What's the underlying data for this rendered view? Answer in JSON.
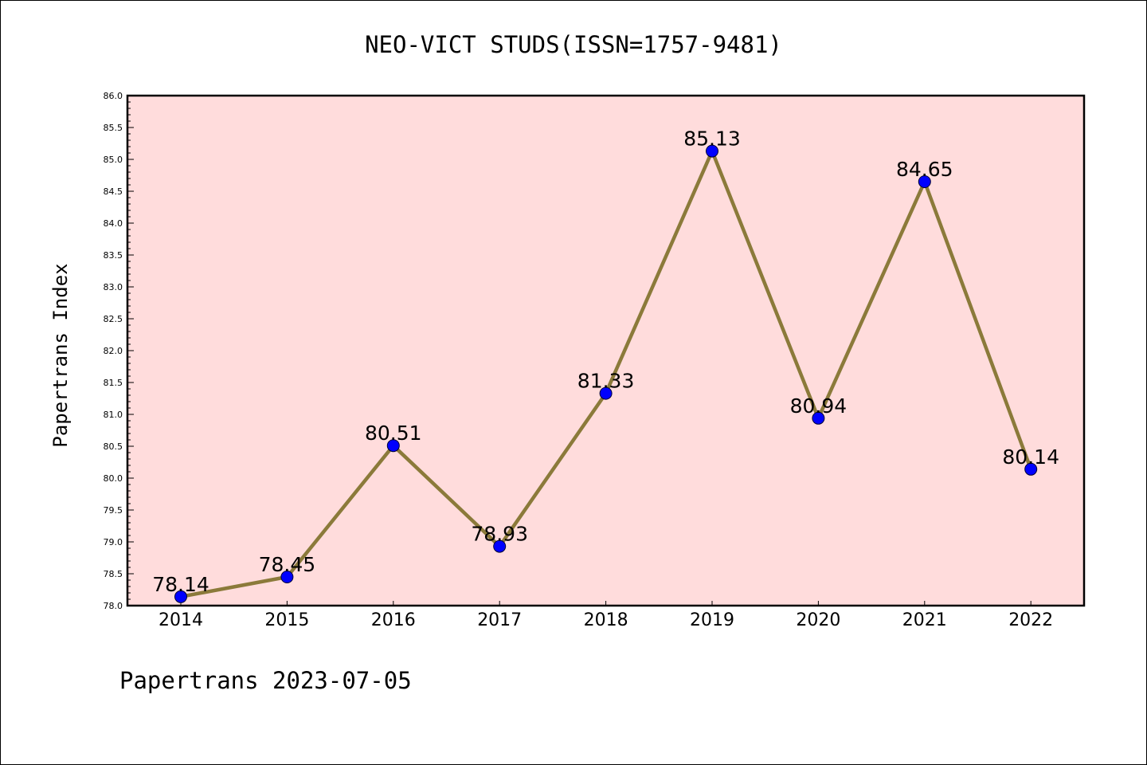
{
  "chart_data": {
    "type": "line",
    "title": "NEO-VICT STUDS(ISSN=1757-9481)",
    "xlabel": "",
    "ylabel": "Papertrans Index",
    "categories": [
      "2014",
      "2015",
      "2016",
      "2017",
      "2018",
      "2019",
      "2020",
      "2021",
      "2022"
    ],
    "series": [
      {
        "values": [
          78.14,
          78.45,
          80.51,
          78.93,
          81.33,
          85.13,
          80.94,
          84.65,
          80.14
        ],
        "data_labels": [
          "78.14",
          "78.45",
          "80.51",
          "78.93",
          "81.33",
          "85.13",
          "80.94",
          "84.65",
          "80.14"
        ]
      }
    ],
    "ylim": [
      78.0,
      86.0
    ],
    "yticks": [
      "78.0",
      "78.5",
      "79.0",
      "79.5",
      "80.0",
      "80.5",
      "81.0",
      "81.5",
      "82.0",
      "82.5",
      "83.0",
      "83.5",
      "84.0",
      "84.5",
      "85.0",
      "85.5",
      "86.0"
    ],
    "grid": false,
    "legend": "none",
    "colors": {
      "plot_background": "#ffdcdc",
      "line": "#8b7a3a",
      "marker": "#0000ff"
    }
  },
  "footer": "Papertrans 2023-07-05"
}
